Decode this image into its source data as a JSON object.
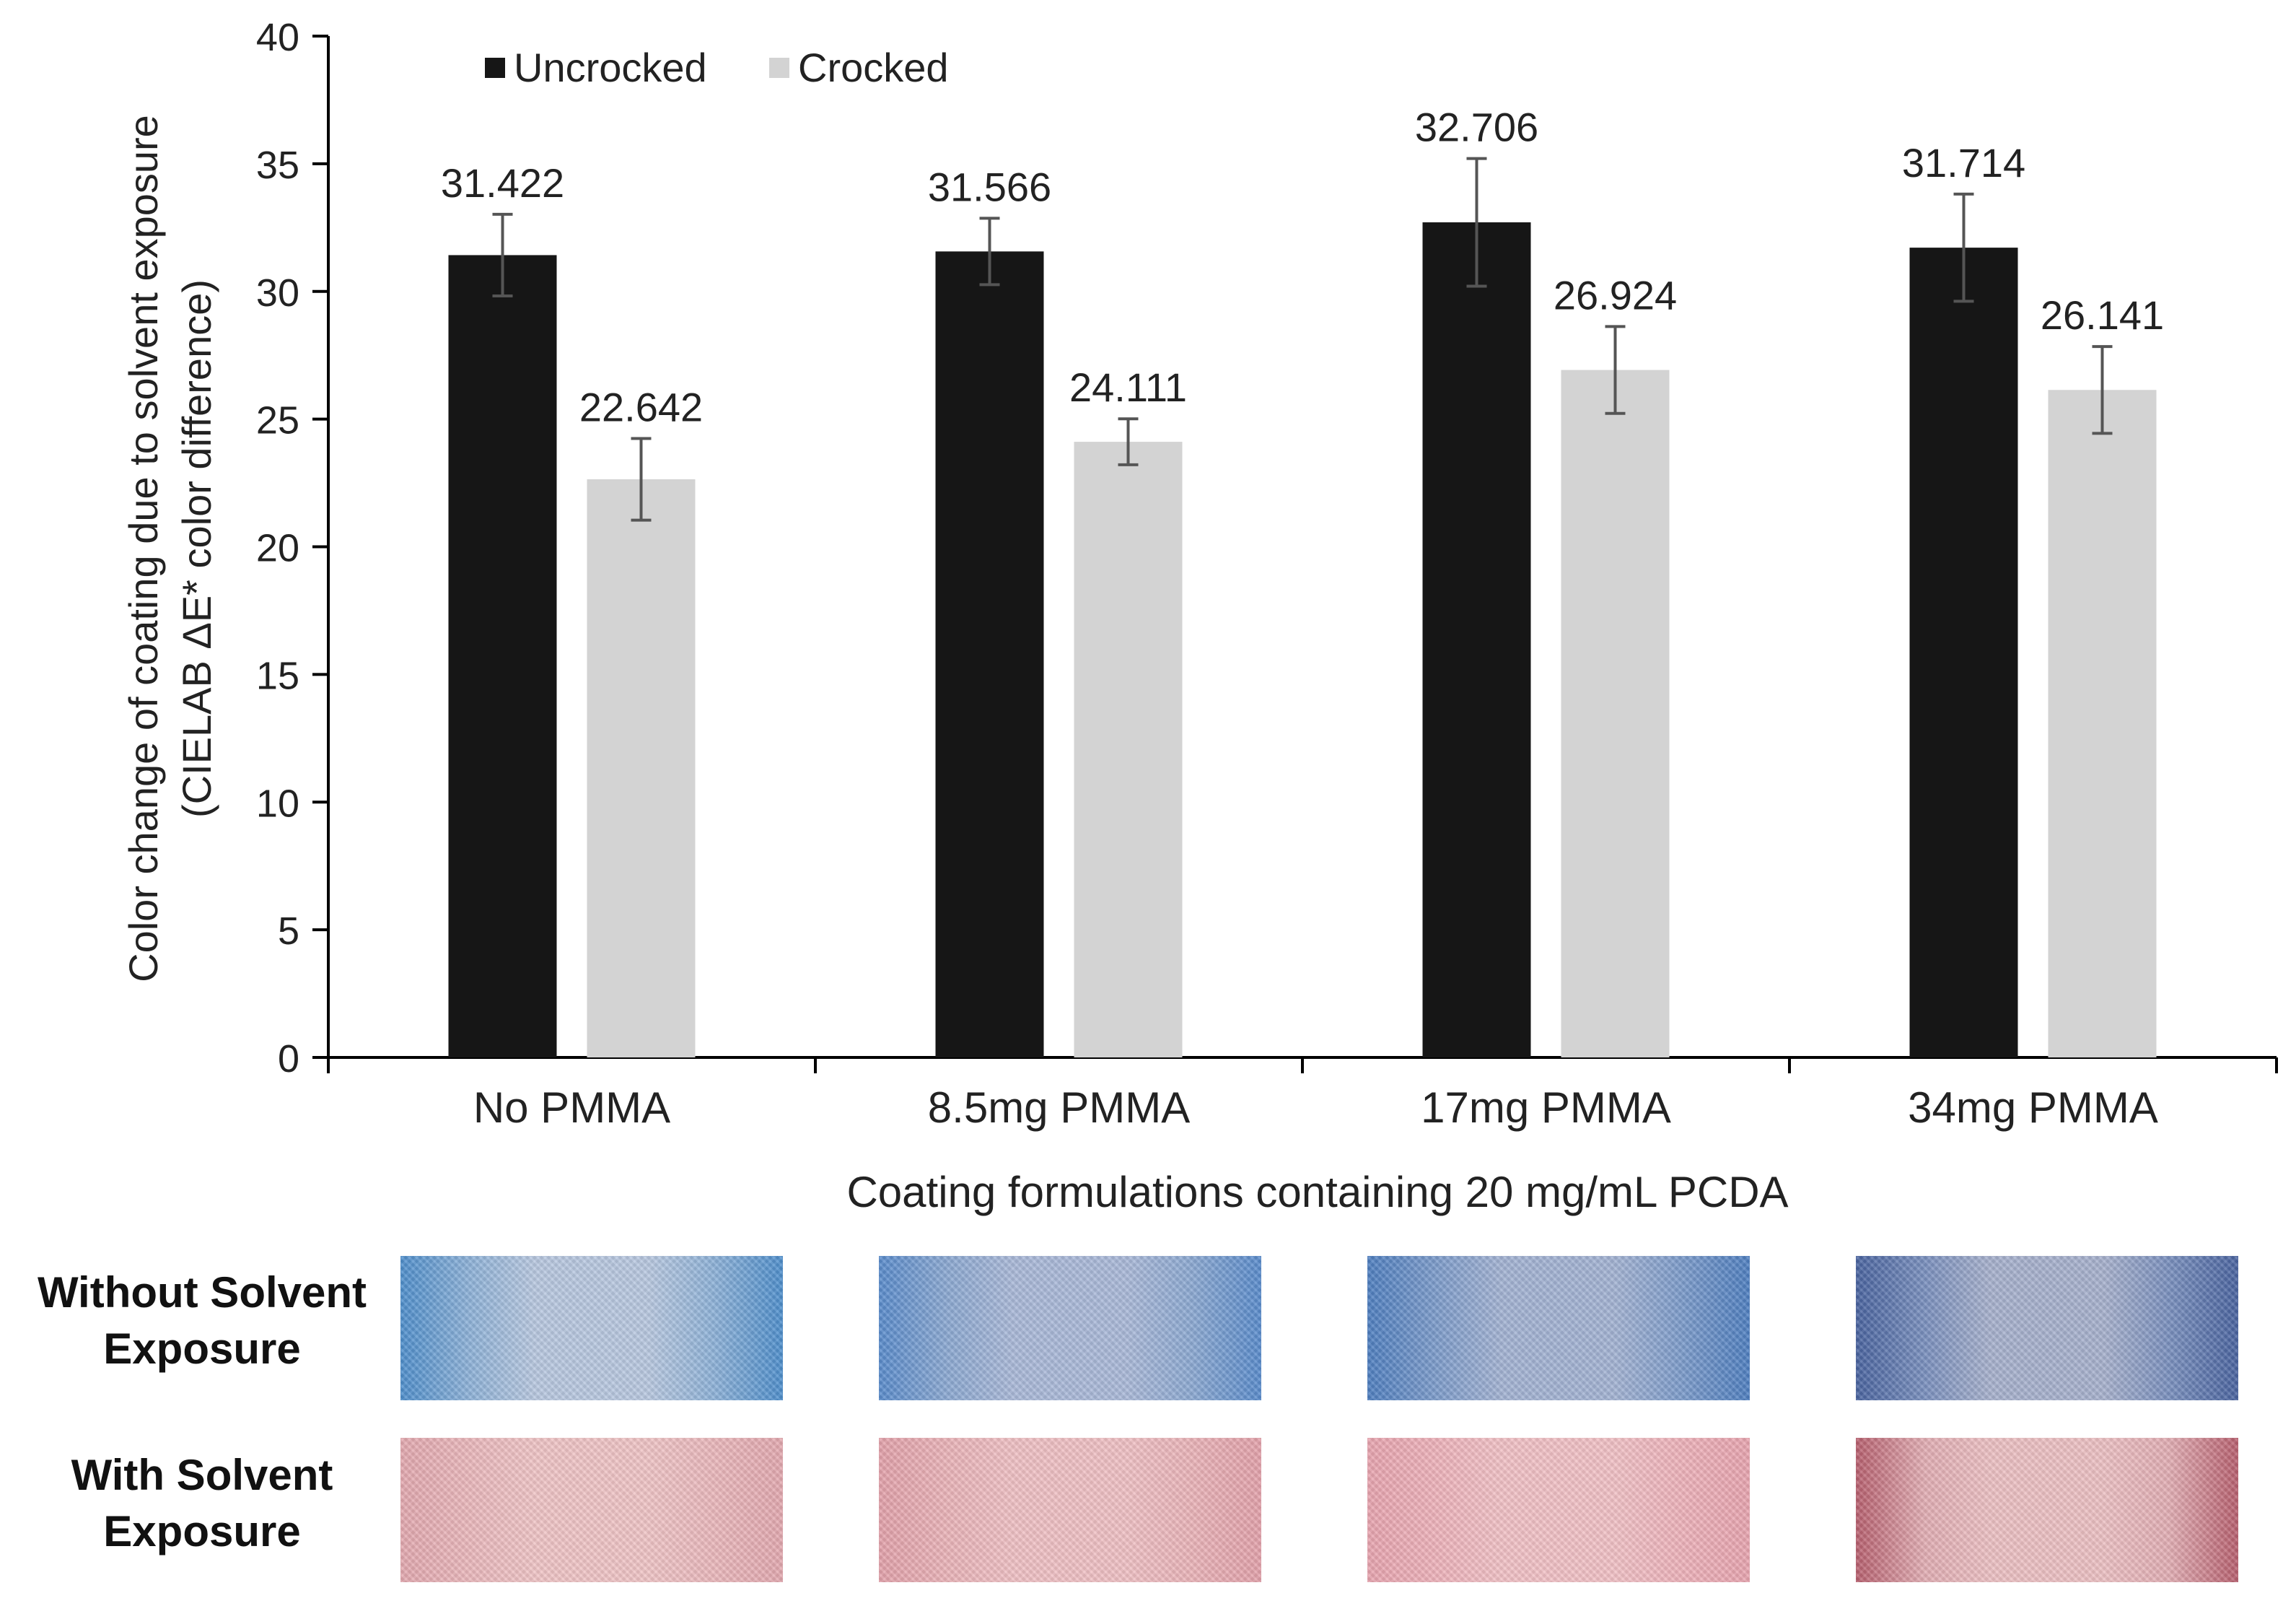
{
  "chart_data": {
    "type": "bar",
    "title": "",
    "xlabel": "Coating formulations containing 20 mg/mL PCDA",
    "ylabel_line1": "Color change of coating due to solvent exposure",
    "ylabel_line2": "(CIELAB ΔE* color difference)",
    "ylim": [
      0,
      40
    ],
    "yticks": [
      0,
      5,
      10,
      15,
      20,
      25,
      30,
      35,
      40
    ],
    "legend_position": "top-left",
    "categories": [
      "No PMMA",
      "8.5mg PMMA",
      "17mg PMMA",
      "34mg PMMA"
    ],
    "series": [
      {
        "name": "Uncrocked",
        "color": "#161616",
        "values": [
          31.422,
          31.566,
          32.706,
          31.714
        ],
        "labels": [
          "31.422",
          "31.566",
          "32.706",
          "31.714"
        ],
        "errors": [
          1.6,
          1.3,
          2.5,
          2.1
        ]
      },
      {
        "name": "Crocked",
        "color": "#d3d3d3",
        "values": [
          22.642,
          24.111,
          26.924,
          26.141
        ],
        "labels": [
          "22.642",
          "24.111",
          "26.924",
          "26.141"
        ],
        "errors": [
          1.6,
          0.9,
          1.7,
          1.7
        ]
      }
    ]
  },
  "swatch_rows": [
    {
      "label_line1": "Without Solvent",
      "label_line2": "Exposure",
      "samples": [
        {
          "base": "#8eb2d8",
          "edge": "#4f8fcc",
          "center": "#b8c8e0"
        },
        {
          "base": "#8ca9d2",
          "edge": "#5a8ccc",
          "center": "#aab9d8"
        },
        {
          "base": "#7d9ccb",
          "edge": "#4f7fc0",
          "center": "#a3b3d3"
        },
        {
          "base": "#7a90be",
          "edge": "#4a64a0",
          "center": "#a7b1cd"
        }
      ]
    },
    {
      "label_line1": "With Solvent",
      "label_line2": "Exposure",
      "samples": [
        {
          "base": "#eab8bc",
          "edge": "#e3a9b0",
          "center": "#efc4c6"
        },
        {
          "base": "#eab4b9",
          "edge": "#e3a2ab",
          "center": "#efc0c4"
        },
        {
          "base": "#eeb3bb",
          "edge": "#e8a5b0",
          "center": "#f1c1c6"
        },
        {
          "base": "#e2aeb4",
          "edge": "#b8606f",
          "center": "#ecc0c3"
        }
      ]
    }
  ]
}
